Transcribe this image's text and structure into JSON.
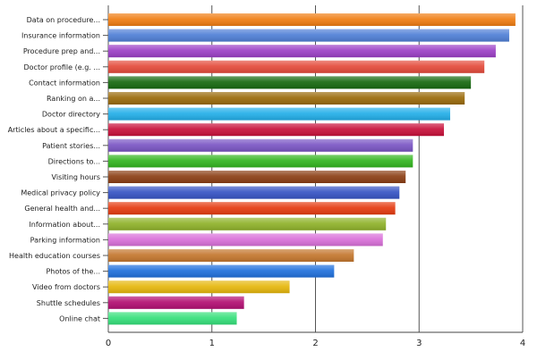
{
  "chart_data": {
    "type": "bar",
    "orientation": "horizontal",
    "title": "",
    "xlabel": "",
    "ylabel": "",
    "xlim": [
      0,
      4
    ],
    "x_ticks": [
      "0",
      "1",
      "2",
      "3",
      "4"
    ],
    "grid": true,
    "categories": [
      "Data on procedure...",
      "Insurance information",
      "Procedure prep and...",
      "Doctor profile (e.g. ...",
      "Contact information",
      "Ranking on a...",
      "Doctor directory",
      "Articles about a specific...",
      "Patient stories...",
      "Directions to...",
      "Visiting hours",
      "Medical privacy policy",
      "General health and...",
      "Information about...",
      "Parking information",
      "Health education courses",
      "Photos of the...",
      "Video from doctors",
      "Shuttle schedules",
      "Online chat"
    ],
    "values": [
      3.93,
      3.87,
      3.74,
      3.63,
      3.5,
      3.44,
      3.3,
      3.24,
      2.94,
      2.94,
      2.87,
      2.81,
      2.77,
      2.68,
      2.65,
      2.37,
      2.18,
      1.75,
      1.31,
      1.24
    ],
    "colors": [
      "#f07d12",
      "#4f7fd6",
      "#9c3fc6",
      "#e44a3a",
      "#16690f",
      "#9a6a0a",
      "#22aee8",
      "#c8103a",
      "#7a55c4",
      "#33b51f",
      "#8b3e14",
      "#3653c4",
      "#e53b10",
      "#8fb22a",
      "#d96fd9",
      "#c4772e",
      "#1f70dc",
      "#e6b70c",
      "#b20e72",
      "#35e07a"
    ]
  }
}
